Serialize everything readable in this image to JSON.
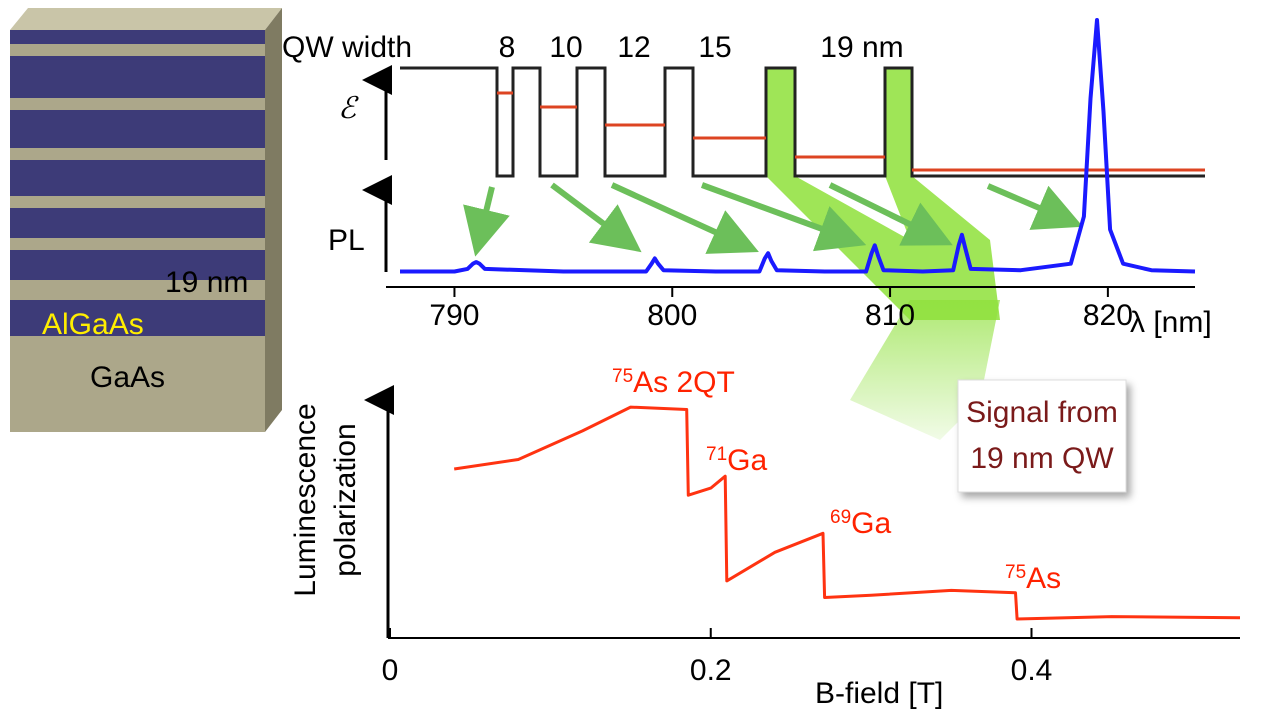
{
  "structure": {
    "layer_label": "19 nm",
    "barrier_label": "AlGaAs",
    "substrate_label": "GaAs"
  },
  "qw_diagram": {
    "label": "QW width",
    "widths": [
      "8",
      "10",
      "12",
      "15",
      "19 nm"
    ],
    "energy_label": "ℰ"
  },
  "callout": [
    "Signal from",
    "19 nm QW"
  ],
  "chart_data": [
    {
      "type": "line",
      "ylabel": "PL",
      "xlabel": "λ [nm]",
      "color": "#1a1aff",
      "xlim": [
        787.5,
        824
      ],
      "xticks": [
        790,
        800,
        810,
        820
      ],
      "ylim": [
        0,
        1
      ],
      "x": [
        787.5,
        790,
        790.6,
        790.85,
        791,
        791.15,
        791.4,
        795,
        798.8,
        799.05,
        799.2,
        799.35,
        799.6,
        802,
        804,
        804.25,
        804.4,
        804.55,
        804.8,
        807,
        808.9,
        809.15,
        809.3,
        809.45,
        809.7,
        811.5,
        812.9,
        813.15,
        813.3,
        813.45,
        813.7,
        816,
        818.3,
        818.9,
        819.2,
        819.5,
        819.8,
        820.1,
        820.7,
        822,
        824
      ],
      "values": [
        0.04,
        0.04,
        0.05,
        0.07,
        0.076,
        0.07,
        0.05,
        0.04,
        0.04,
        0.07,
        0.09,
        0.07,
        0.045,
        0.04,
        0.04,
        0.09,
        0.11,
        0.08,
        0.045,
        0.04,
        0.04,
        0.11,
        0.14,
        0.1,
        0.045,
        0.04,
        0.045,
        0.14,
        0.18,
        0.13,
        0.05,
        0.045,
        0.07,
        0.25,
        0.7,
        1.0,
        0.65,
        0.2,
        0.07,
        0.045,
        0.04
      ]
    },
    {
      "type": "line",
      "ylabel": [
        "Luminescence",
        "polarization"
      ],
      "xlabel": "B-field [T]",
      "color": "#ff3311",
      "xlim": [
        0,
        0.53
      ],
      "xticks": [
        0,
        0.2,
        0.4
      ],
      "ylim": [
        0,
        1
      ],
      "x": [
        0.04,
        0.08,
        0.12,
        0.15,
        0.185,
        0.186,
        0.2,
        0.209,
        0.21,
        0.24,
        0.27,
        0.271,
        0.3,
        0.35,
        0.39,
        0.391,
        0.45,
        0.53
      ],
      "values": [
        0.71,
        0.75,
        0.87,
        0.97,
        0.96,
        0.6,
        0.63,
        0.68,
        0.24,
        0.36,
        0.44,
        0.17,
        0.18,
        0.2,
        0.19,
        0.08,
        0.09,
        0.085
      ],
      "annotations": [
        {
          "sup": "75",
          "text": "As 2QT"
        },
        {
          "sup": "71",
          "text": "Ga"
        },
        {
          "sup": "69",
          "text": "Ga"
        },
        {
          "sup": "75",
          "text": "As"
        }
      ]
    }
  ]
}
